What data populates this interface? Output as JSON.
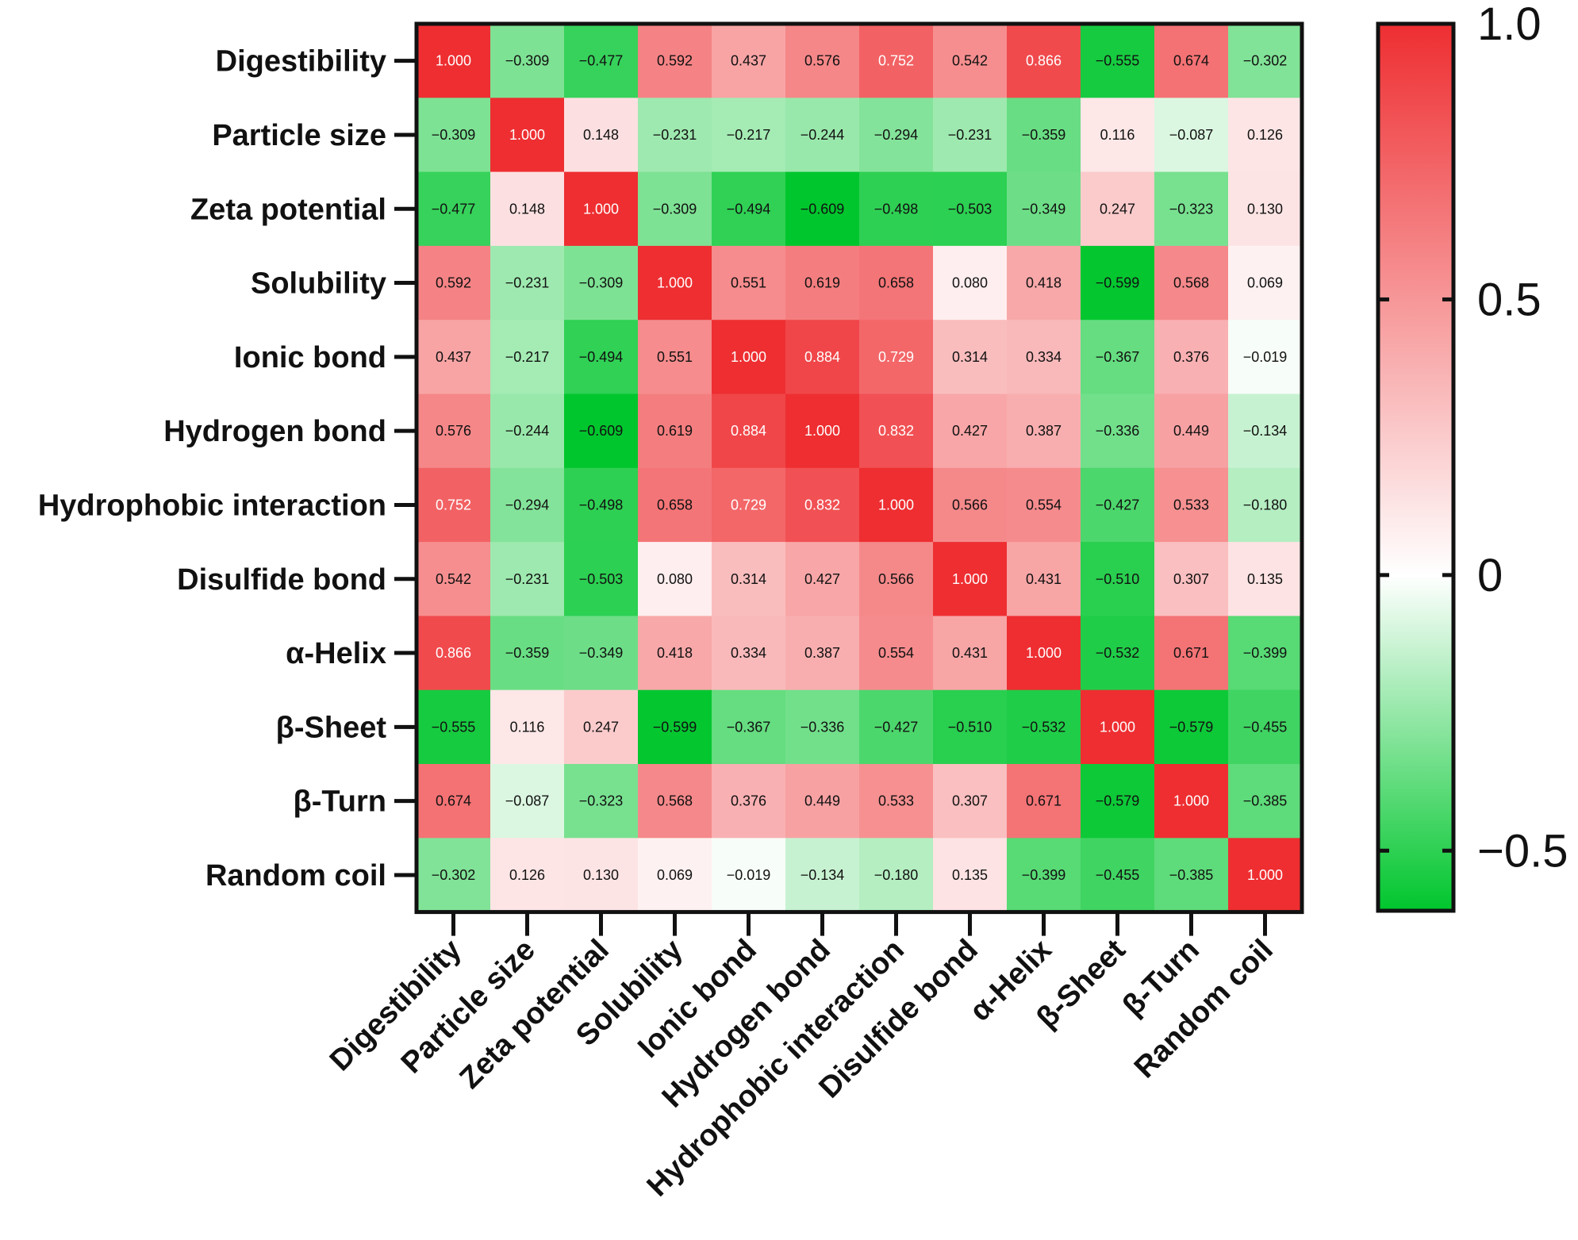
{
  "chart_data": {
    "type": "heatmap",
    "title": "",
    "xlabel": "",
    "ylabel": "",
    "variables": [
      "Digestibility",
      "Particle size",
      "Zeta potential",
      "Solubility",
      "Ionic bond",
      "Hydrogen bond",
      "Hydrophobic interaction",
      "Disulfide bond",
      "α-Helix",
      "β-Sheet",
      "β-Turn",
      "Random coil"
    ],
    "values": [
      [
        1.0,
        -0.309,
        -0.477,
        0.592,
        0.437,
        0.576,
        0.752,
        0.542,
        0.866,
        -0.555,
        0.674,
        -0.302
      ],
      [
        -0.309,
        1.0,
        0.148,
        -0.231,
        -0.217,
        -0.244,
        -0.294,
        -0.231,
        -0.359,
        0.116,
        -0.087,
        0.126
      ],
      [
        -0.477,
        0.148,
        1.0,
        -0.309,
        -0.494,
        -0.609,
        -0.498,
        -0.503,
        -0.349,
        0.247,
        -0.323,
        0.13
      ],
      [
        0.592,
        -0.231,
        -0.309,
        1.0,
        0.551,
        0.619,
        0.658,
        0.08,
        0.418,
        -0.599,
        0.568,
        0.069
      ],
      [
        0.437,
        -0.217,
        -0.494,
        0.551,
        1.0,
        0.884,
        0.729,
        0.314,
        0.334,
        -0.367,
        0.376,
        -0.019
      ],
      [
        0.576,
        -0.244,
        -0.609,
        0.619,
        0.884,
        1.0,
        0.832,
        0.427,
        0.387,
        -0.336,
        0.449,
        -0.134
      ],
      [
        0.752,
        -0.294,
        -0.498,
        0.658,
        0.729,
        0.832,
        1.0,
        0.566,
        0.554,
        -0.427,
        0.533,
        -0.18
      ],
      [
        0.542,
        -0.231,
        -0.503,
        0.08,
        0.314,
        0.427,
        0.566,
        1.0,
        0.431,
        -0.51,
        0.307,
        0.135
      ],
      [
        0.866,
        -0.359,
        -0.349,
        0.418,
        0.334,
        0.387,
        0.554,
        0.431,
        1.0,
        -0.532,
        0.671,
        -0.399
      ],
      [
        -0.555,
        0.116,
        0.247,
        -0.599,
        -0.367,
        -0.336,
        -0.427,
        -0.51,
        -0.532,
        1.0,
        -0.579,
        -0.455
      ],
      [
        0.674,
        -0.087,
        -0.323,
        0.568,
        0.376,
        0.449,
        0.533,
        0.307,
        0.671,
        -0.579,
        1.0,
        -0.385
      ],
      [
        -0.302,
        0.126,
        0.13,
        0.069,
        -0.019,
        -0.134,
        -0.18,
        0.135,
        -0.399,
        -0.455,
        -0.385,
        1.0
      ]
    ],
    "value_labels": [
      [
        "1.000",
        "−0.309",
        "−0.477",
        "0.592",
        "0.437",
        "0.576",
        "0.752",
        "0.542",
        "0.866",
        "−0.555",
        "0.674",
        "−0.302"
      ],
      [
        "−0.309",
        "1.000",
        "0.148",
        "−0.231",
        "−0.217",
        "−0.244",
        "−0.294",
        "−0.231",
        "−0.359",
        "0.116",
        "−0.087",
        "0.126"
      ],
      [
        "−0.477",
        "0.148",
        "1.000",
        "−0.309",
        "−0.494",
        "−0.609",
        "−0.498",
        "−0.503",
        "−0.349",
        "0.247",
        "−0.323",
        "0.130"
      ],
      [
        "0.592",
        "−0.231",
        "−0.309",
        "1.000",
        "0.551",
        "0.619",
        "0.658",
        "0.080",
        "0.418",
        "−0.599",
        "0.568",
        "0.069"
      ],
      [
        "0.437",
        "−0.217",
        "−0.494",
        "0.551",
        "1.000",
        "0.884",
        "0.729",
        "0.314",
        "0.334",
        "−0.367",
        "0.376",
        "−0.019"
      ],
      [
        "0.576",
        "−0.244",
        "−0.609",
        "0.619",
        "0.884",
        "1.000",
        "0.832",
        "0.427",
        "0.387",
        "−0.336",
        "0.449",
        "−0.134"
      ],
      [
        "0.752",
        "−0.294",
        "−0.498",
        "0.658",
        "0.729",
        "0.832",
        "1.000",
        "0.566",
        "0.554",
        "−0.427",
        "0.533",
        "−0.180"
      ],
      [
        "0.542",
        "−0.231",
        "−0.503",
        "0.080",
        "0.314",
        "0.427",
        "0.566",
        "1.000",
        "0.431",
        "−0.510",
        "0.307",
        "0.135"
      ],
      [
        "0.866",
        "−0.359",
        "−0.349",
        "0.418",
        "0.334",
        "0.387",
        "0.554",
        "0.431",
        "1.000",
        "−0.532",
        "0.671",
        "−0.399"
      ],
      [
        "−0.555",
        "0.116",
        "0.247",
        "−0.599",
        "−0.367",
        "−0.336",
        "−0.427",
        "−0.510",
        "−0.532",
        "1.000",
        "−0.579",
        "−0.455"
      ],
      [
        "0.674",
        "−0.087",
        "−0.323",
        "0.568",
        "0.376",
        "0.449",
        "0.533",
        "0.307",
        "0.671",
        "−0.579",
        "1.000",
        "−0.385"
      ],
      [
        "−0.302",
        "0.126",
        "0.130",
        "0.069",
        "−0.019",
        "−0.134",
        "−0.180",
        "0.135",
        "−0.399",
        "−0.455",
        "−0.385",
        "1.000"
      ]
    ],
    "colorbar": {
      "min": -0.609,
      "max": 1.0,
      "ticks": [
        1.0,
        0.5,
        0,
        -0.5
      ],
      "tick_labels": [
        "1.0",
        "0.5",
        "0",
        "−0.5"
      ],
      "colors": {
        "low": "#00c62d",
        "mid": "#ffffff",
        "high": "#ee2e31"
      }
    },
    "legend": "right"
  },
  "colors": {
    "axis": "#111111",
    "text_dark": "#111111",
    "text_light": "#ffffff"
  }
}
